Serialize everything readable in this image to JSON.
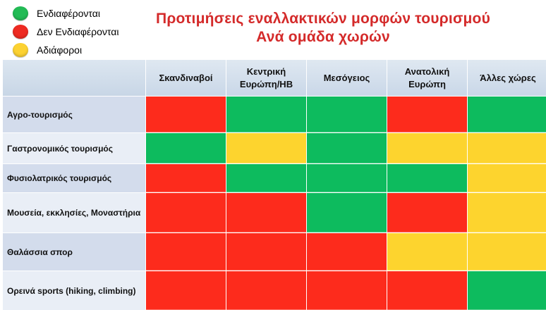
{
  "legend": [
    {
      "label": "Ενδιαφέρονται",
      "color": "#22bb55"
    },
    {
      "label": "Δεν Ενδιαφέρονται",
      "color": "#ee2b22"
    },
    {
      "label": "Αδιάφοροι",
      "color": "#fcd232"
    }
  ],
  "title_line1": "Προτιμήσεις εναλλακτικών μορφών τουρισμού",
  "title_line2": "Ανά ομάδα χωρών",
  "chart_data": {
    "type": "table",
    "columns": [
      "Σκανδιναβοί",
      "Κεντρική Ευρώπη/ΗΒ",
      "Μεσόγειος",
      "Ανατολική Ευρώπη",
      "Άλλες χώρες"
    ],
    "rows": [
      "Αγρο-τουρισμός",
      "Γαστρονομικός τουρισμός",
      "Φυσιολατρικός τουρισμός",
      "Μουσεία, εκκλησίες, Μοναστήρια",
      "Θαλάσσια σπορ",
      "Ορεινά sports (hiking, climbing)"
    ],
    "values": [
      [
        "red",
        "green",
        "green",
        "red",
        "green"
      ],
      [
        "green",
        "yellow",
        "green",
        "yellow",
        "yellow"
      ],
      [
        "red",
        "green",
        "green",
        "green",
        "yellow"
      ],
      [
        "red",
        "red",
        "green",
        "red",
        "yellow"
      ],
      [
        "red",
        "red",
        "red",
        "yellow",
        "yellow"
      ],
      [
        "red",
        "red",
        "red",
        "red",
        "green"
      ]
    ],
    "value_legend": {
      "green": "Ενδιαφέρονται",
      "red": "Δεν Ενδιαφέρονται",
      "yellow": "Αδιάφοροι"
    },
    "colors": {
      "green": "#0dbb5e",
      "red": "#fd2b1c",
      "yellow": "#fdd42e"
    }
  }
}
